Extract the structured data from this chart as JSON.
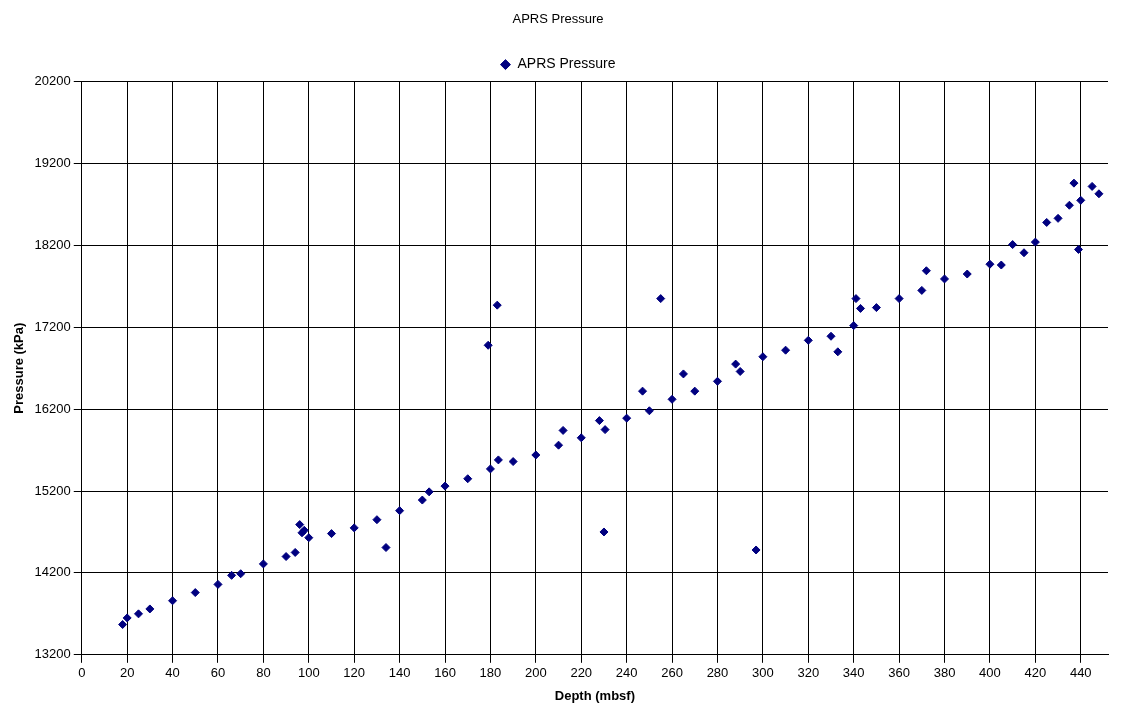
{
  "chart_data": {
    "type": "scatter",
    "title": "APRS Pressure",
    "xlabel": "Depth (mbsf)",
    "ylabel": "Pressure (kPa)",
    "xlim": [
      0,
      452
    ],
    "ylim": [
      13200,
      20200
    ],
    "xticks": [
      0,
      20,
      40,
      60,
      80,
      100,
      120,
      140,
      160,
      180,
      200,
      220,
      240,
      260,
      280,
      300,
      320,
      340,
      360,
      380,
      400,
      420,
      440
    ],
    "yticks": [
      13200,
      14200,
      15200,
      16200,
      17200,
      18200,
      19200,
      20200
    ],
    "grid": true,
    "legend": "top",
    "marker": "diamond",
    "series": [
      {
        "name": "APRS Pressure",
        "color": "#000080",
        "x": [
          18,
          20,
          25,
          30,
          40,
          50,
          60,
          66,
          70,
          80,
          90,
          94,
          96,
          97,
          98,
          100,
          110,
          120,
          130,
          134,
          140,
          150,
          153,
          160,
          170,
          179,
          180,
          183,
          183.5,
          190,
          200,
          210,
          212,
          220,
          228,
          230,
          230.5,
          240,
          247,
          250,
          255,
          260,
          265,
          270,
          280,
          288,
          290,
          297,
          300,
          310,
          320,
          330,
          333,
          340,
          341,
          343,
          350,
          360,
          370,
          372,
          380,
          390,
          400,
          405,
          410,
          415,
          420,
          425,
          430,
          435,
          437,
          439,
          440,
          445,
          448
        ],
        "values": [
          13570,
          13650,
          13700,
          13760,
          13860,
          13960,
          14060,
          14170,
          14190,
          14310,
          14400,
          14450,
          14790,
          14690,
          14720,
          14630,
          14680,
          14750,
          14850,
          14510,
          14960,
          15090,
          15190,
          15260,
          15350,
          16980,
          15470,
          17470,
          15580,
          15560,
          15640,
          15760,
          15940,
          15850,
          16060,
          14700,
          15950,
          16090,
          16420,
          16180,
          17550,
          16320,
          16630,
          16420,
          16540,
          16750,
          16660,
          14480,
          16840,
          16920,
          17040,
          17090,
          16900,
          17220,
          17550,
          17430,
          17440,
          17550,
          17650,
          17890,
          17790,
          17850,
          17970,
          17960,
          18210,
          18110,
          18240,
          18480,
          18530,
          18690,
          18960,
          18150,
          18750,
          18920,
          18830
        ]
      }
    ]
  }
}
